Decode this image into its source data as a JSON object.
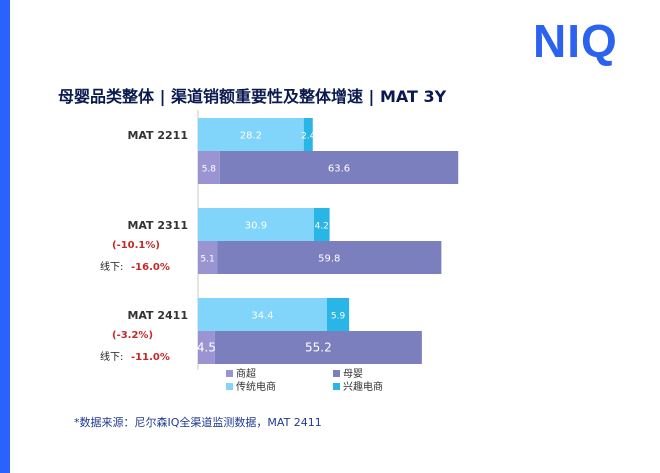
{
  "brand": {
    "logo_text": "NIQ",
    "logo_color": "#2b63ee",
    "stripe_color": "#2962ff"
  },
  "chart_data": {
    "type": "bar",
    "title": "母婴品类整体 | 渠道销额重要性及整体增速 | MAT 3Y",
    "categories": [
      "MAT 2211",
      "MAT 2311",
      "MAT 2411"
    ],
    "growth": [
      {
        "overall": "",
        "offline": ""
      },
      {
        "overall": "(-10.1%)",
        "offline_label": "线下:",
        "offline": "-16.0%"
      },
      {
        "overall": "(-3.2%)",
        "offline_label": "线下:",
        "offline": "-11.0%"
      }
    ],
    "bar_groups": [
      {
        "name": "online",
        "series": [
          {
            "name": "传统电商",
            "values": [
              28.2,
              30.9,
              34.4
            ],
            "color": "#81d4fa"
          },
          {
            "name": "兴趣电商",
            "values": [
              2.4,
              4.2,
              5.9
            ],
            "color": "#29b6e6"
          }
        ]
      },
      {
        "name": "offline",
        "series": [
          {
            "name": "商超",
            "values": [
              5.8,
              5.1,
              4.5
            ],
            "color": "#9a95d2"
          },
          {
            "name": "母婴",
            "values": [
              63.6,
              59.8,
              55.2
            ],
            "color": "#7b7fbd"
          }
        ]
      }
    ],
    "legend": [
      {
        "name": "商超",
        "color": "#9a95d2"
      },
      {
        "name": "母婴",
        "color": "#7b7fbd"
      },
      {
        "name": "传统电商",
        "color": "#81d4fa"
      },
      {
        "name": "兴趣电商",
        "color": "#29b6e6"
      }
    ],
    "legend_position": "bottom",
    "xlim": [
      0,
      100
    ],
    "growth_color": "#c62828"
  },
  "footnote": "*数据来源：尼尔森IQ全渠道监测数据，MAT 2411"
}
